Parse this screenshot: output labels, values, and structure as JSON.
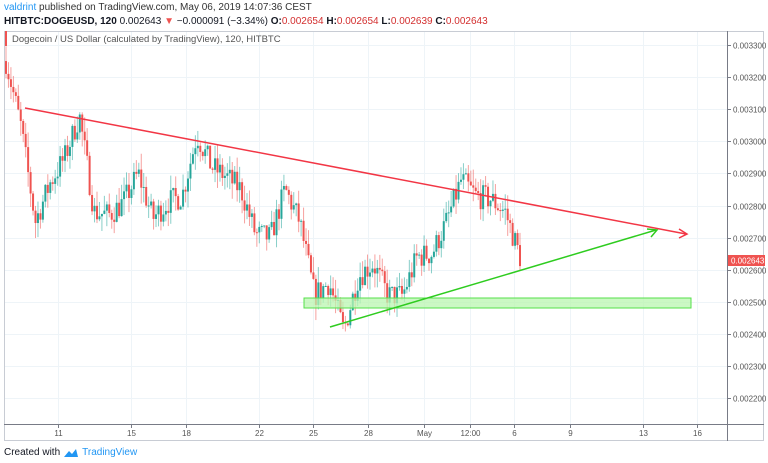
{
  "header": {
    "author": "valdrint",
    "published_text": "published on TradingView.com, May 06, 2019 14:07:36 CEST"
  },
  "quote": {
    "symbol": "HITBTC:DOGEUSD, 120",
    "last": "0.002643",
    "change": "−0.000091 (−3.34%)",
    "open_label": "O:",
    "open": "0.002654",
    "high_label": "H:",
    "high": "0.002654",
    "low_label": "L:",
    "low": "0.002639",
    "close_label": "C:",
    "close": "0.002643",
    "direction_icon": "down-triangle-icon"
  },
  "legend": {
    "title": "Dogecoin / US Dollar (calculated by TradingView), 120, HITBTC"
  },
  "footer": {
    "created_with": "Created with",
    "brand": "TradingView"
  },
  "colors": {
    "up": "#26a69a",
    "down": "#ef5350",
    "resistance_line": "#f23645",
    "support_line": "#2ecc1f",
    "support_zone_fill": "#b9f5b0",
    "support_zone_border": "#55e04a",
    "price_label_bg": "#ef5350",
    "grid": "#eef4f8",
    "axis": "#787b86"
  },
  "chart_data": {
    "type": "candlestick",
    "title": "Dogecoin / US Dollar (calculated by TradingView), 120, HITBTC",
    "symbol": "HITBTC:DOGEUSD",
    "interval": "120",
    "xlabel": "",
    "ylabel": "",
    "ylim": [
      0.00215,
      0.00334
    ],
    "y_ticks": [
      "0.003300",
      "0.003200",
      "0.003100",
      "0.003000",
      "0.002900",
      "0.002800",
      "0.002700",
      "0.002600",
      "0.002500",
      "0.002400",
      "0.002300",
      "0.002200"
    ],
    "x_ticks": [
      "11",
      "15",
      "18",
      "22",
      "25",
      "28",
      "May",
      "12:00",
      "6",
      "9",
      "13",
      "16"
    ],
    "grid": true,
    "last_price_label": "0.002643",
    "price_path_approx": [
      {
        "x": "Apr 8",
        "price": 0.00325
      },
      {
        "x": "Apr 9",
        "price": 0.00305
      },
      {
        "x": "Apr 10",
        "price": 0.00275
      },
      {
        "x": "Apr 10.5",
        "price": 0.00287
      },
      {
        "x": "Apr 11",
        "price": 0.00295
      },
      {
        "x": "Apr 11.5",
        "price": 0.00308
      },
      {
        "x": "Apr 12",
        "price": 0.00278
      },
      {
        "x": "Apr 13",
        "price": 0.00277
      },
      {
        "x": "Apr 14",
        "price": 0.00281
      },
      {
        "x": "Apr 15",
        "price": 0.0029
      },
      {
        "x": "Apr 16",
        "price": 0.00276
      },
      {
        "x": "Apr 17",
        "price": 0.00281
      },
      {
        "x": "Apr 18",
        "price": 0.00283
      },
      {
        "x": "Apr 18.5",
        "price": 0.00302
      },
      {
        "x": "Apr 19",
        "price": 0.00292
      },
      {
        "x": "Apr 20",
        "price": 0.00289
      },
      {
        "x": "Apr 21",
        "price": 0.00285
      },
      {
        "x": "Apr 21.5",
        "price": 0.00271
      },
      {
        "x": "Apr 22",
        "price": 0.0027
      },
      {
        "x": "Apr 23",
        "price": 0.00285
      },
      {
        "x": "Apr 24",
        "price": 0.00275
      },
      {
        "x": "Apr 24.5",
        "price": 0.00252
      },
      {
        "x": "Apr 25",
        "price": 0.00256
      },
      {
        "x": "Apr 26",
        "price": 0.00241
      },
      {
        "x": "Apr 27",
        "price": 0.00258
      },
      {
        "x": "Apr 28",
        "price": 0.00262
      },
      {
        "x": "Apr 29",
        "price": 0.00252
      },
      {
        "x": "Apr 30",
        "price": 0.00252
      },
      {
        "x": "May 1",
        "price": 0.00264
      },
      {
        "x": "May 2",
        "price": 0.00265
      },
      {
        "x": "May 3",
        "price": 0.00275
      },
      {
        "x": "May 4",
        "price": 0.00288
      },
      {
        "x": "May 4.5",
        "price": 0.00283
      },
      {
        "x": "May 5",
        "price": 0.00282
      },
      {
        "x": "May 5.5",
        "price": 0.00278
      },
      {
        "x": "May 6",
        "price": 0.00264
      }
    ],
    "annotations": [
      {
        "type": "trendline",
        "name": "descending resistance",
        "color": "#f23645",
        "from": {
          "x": "Apr 9",
          "price": 0.00313
        },
        "to": {
          "x": "Apr 16 (projected)",
          "price": 0.00273
        },
        "arrow": true
      },
      {
        "type": "trendline",
        "name": "ascending support",
        "color": "#2ecc1f",
        "from": {
          "x": "Apr 26",
          "price": 0.00243
        },
        "to": {
          "x": "May 14 (projected)",
          "price": 0.00275
        },
        "arrow": true
      },
      {
        "type": "rectangle",
        "name": "support zone",
        "color": "#b9f5b0",
        "price_top": 0.00251,
        "price_bottom": 0.00248,
        "from_x": "Apr 24",
        "to_x": "May 16"
      }
    ]
  }
}
